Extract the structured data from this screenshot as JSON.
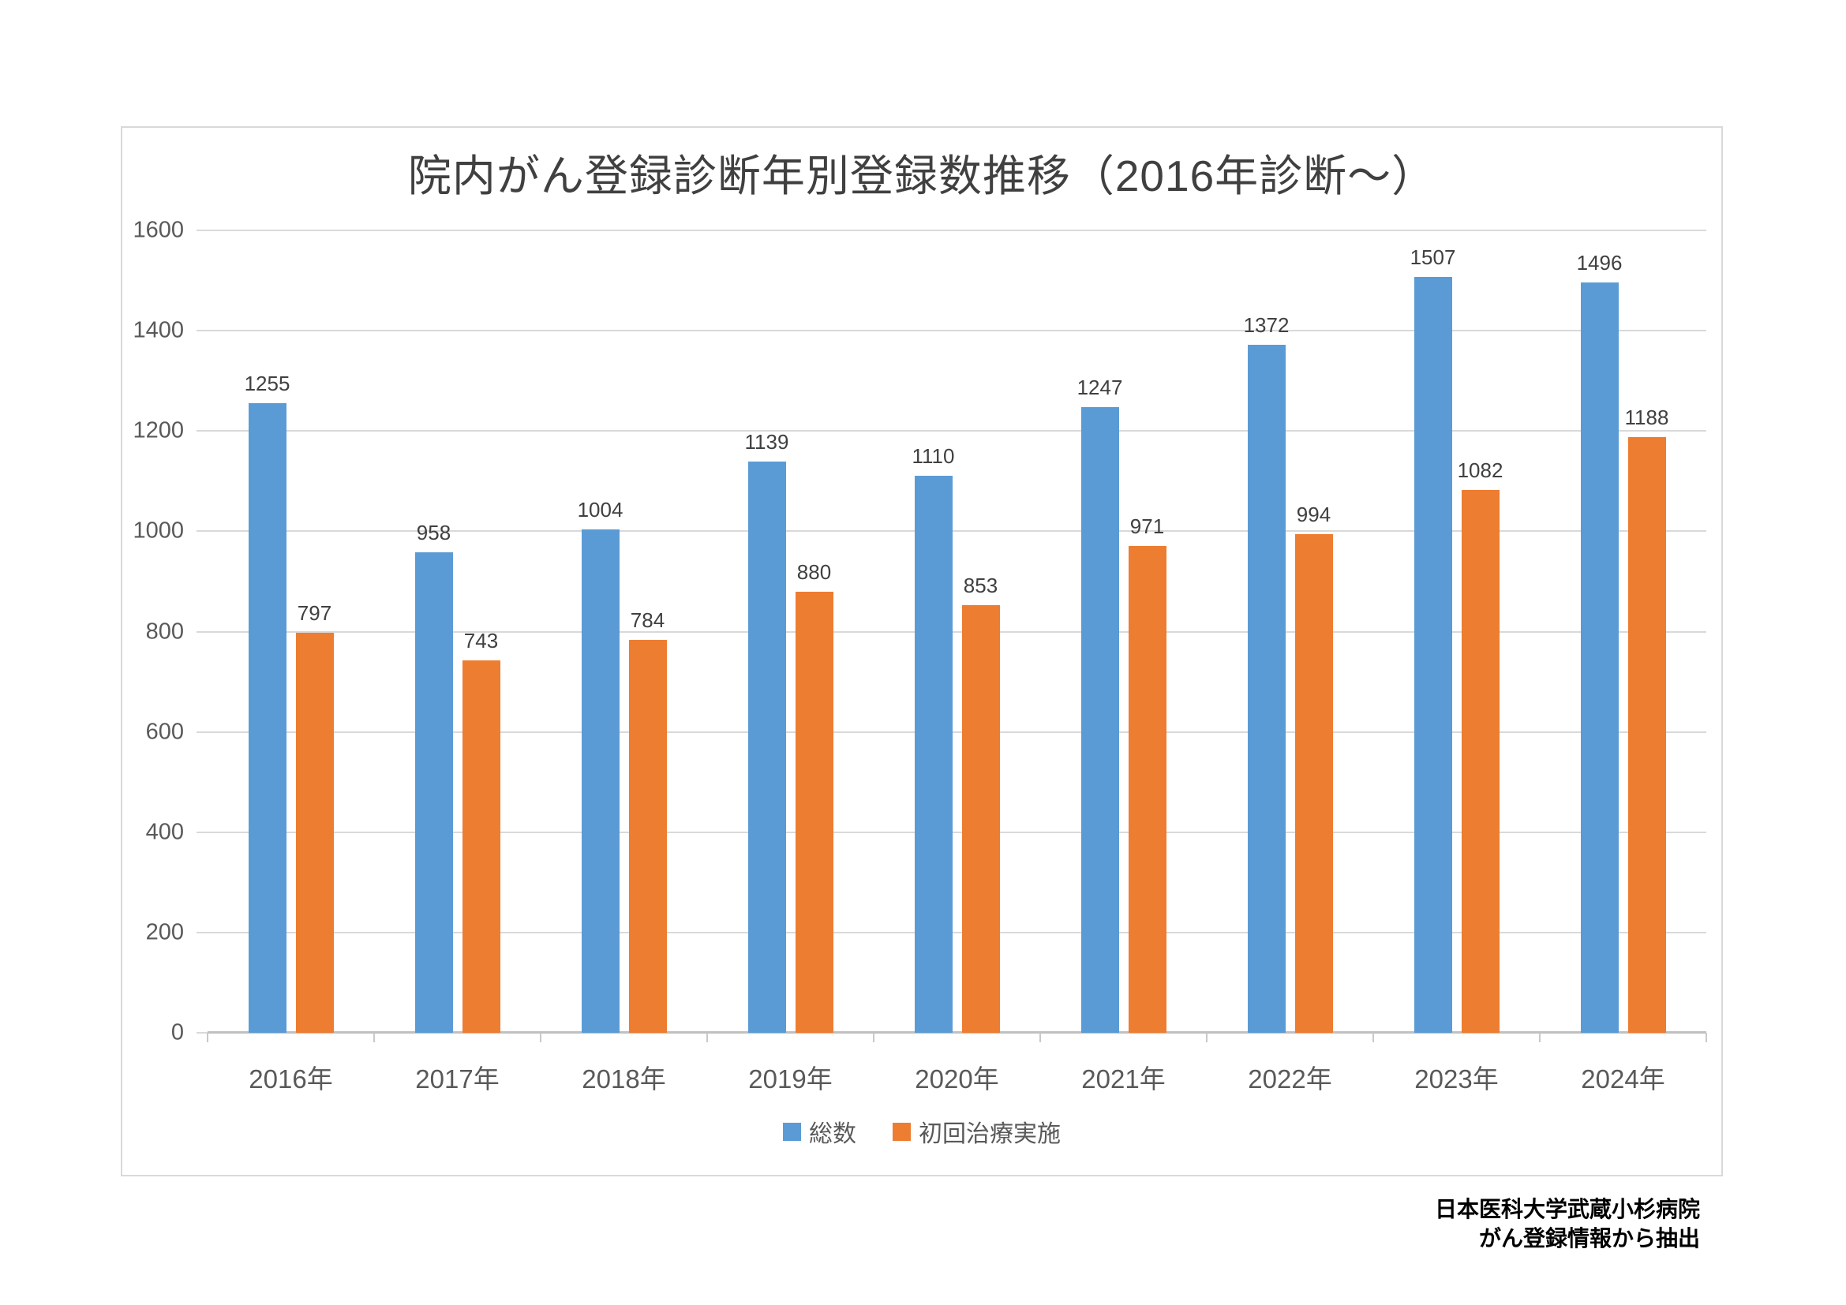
{
  "chart": {
    "title": "院内がん登録診断年別登録数推移（2016年診断～）",
    "source_note_line1": "日本医科大学武蔵小杉病院",
    "source_note_line2": "がん登録情報から抽出"
  },
  "chart_data": {
    "type": "bar",
    "title": "院内がん登録診断年別登録数推移（2016年診断～）",
    "categories": [
      "2016年",
      "2017年",
      "2018年",
      "2019年",
      "2020年",
      "2021年",
      "2022年",
      "2023年",
      "2024年"
    ],
    "series": [
      {
        "name": "総数",
        "color": "#5B9BD5",
        "values": [
          1255,
          958,
          1004,
          1139,
          1110,
          1247,
          1372,
          1507,
          1496
        ]
      },
      {
        "name": "初回治療実施",
        "color": "#ED7D31",
        "values": [
          797,
          743,
          784,
          880,
          853,
          971,
          994,
          1082,
          1188
        ]
      }
    ],
    "xlabel": "",
    "ylabel": "",
    "ylim": [
      0,
      1600
    ],
    "ytick_step": 200,
    "grid": true,
    "data_labels": true,
    "legend_position": "bottom"
  },
  "colors": {
    "series_total": "#5B9BD5",
    "series_first_treatment": "#ED7D31",
    "gridline": "#D9D9D9",
    "axis_line": "#C0C0C0",
    "tick_label": "#595959",
    "data_label": "#404040",
    "title": "#404040",
    "frame_border": "#D9D9D9"
  }
}
